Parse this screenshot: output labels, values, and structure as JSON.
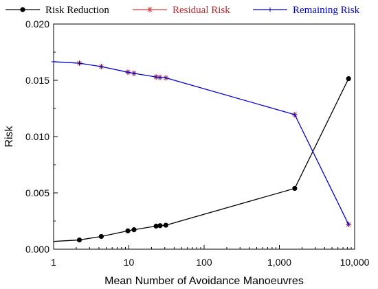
{
  "chart_data": {
    "type": "line",
    "xlabel": "Mean Number of Avoidance Manoeuvres",
    "ylabel": "Risk",
    "xscale": "log",
    "xlim": [
      1,
      10000
    ],
    "ylim": [
      0,
      0.02
    ],
    "xticks": [
      {
        "value": 1,
        "label": "1"
      },
      {
        "value": 10,
        "label": "10"
      },
      {
        "value": 100,
        "label": "100"
      },
      {
        "value": 1000,
        "label": "1,000"
      },
      {
        "value": 10000,
        "label": "10,000"
      }
    ],
    "yticks": [
      {
        "value": 0,
        "label": "0.000"
      },
      {
        "value": 0.005,
        "label": "0.005"
      },
      {
        "value": 0.01,
        "label": "0.010"
      },
      {
        "value": 0.015,
        "label": "0.015"
      },
      {
        "value": 0.02,
        "label": "0.020"
      }
    ],
    "grid": false,
    "legend_position": "top",
    "series": [
      {
        "name": "Risk Reduction",
        "color": "#000000",
        "marker": "filled-circle",
        "x": [
          1,
          2.2,
          4.3,
          9.7,
          11.7,
          23,
          26,
          31,
          1600,
          8300
        ],
        "y": [
          0.00069,
          0.00082,
          0.00113,
          0.00163,
          0.00173,
          0.00205,
          0.00209,
          0.00213,
          0.0054,
          0.01515
        ],
        "marker_from_index": 1
      },
      {
        "name": "Residual Risk",
        "color": "#d9383a",
        "marker": "asterisk",
        "x": [
          2.2,
          4.3,
          9.7,
          11.7,
          23,
          26,
          31,
          1600,
          8300
        ],
        "y": [
          0.01652,
          0.01622,
          0.01572,
          0.01562,
          0.0153,
          0.01526,
          0.01522,
          0.01195,
          0.0022
        ],
        "line": false
      },
      {
        "name": "Remaining Risk",
        "color": "#0000cc",
        "marker": "plus",
        "x": [
          1,
          2.2,
          4.3,
          9.7,
          11.7,
          23,
          26,
          31,
          1600,
          8300
        ],
        "y": [
          0.01665,
          0.01652,
          0.01622,
          0.01572,
          0.01562,
          0.0153,
          0.01526,
          0.01522,
          0.01195,
          0.0022
        ]
      }
    ]
  }
}
